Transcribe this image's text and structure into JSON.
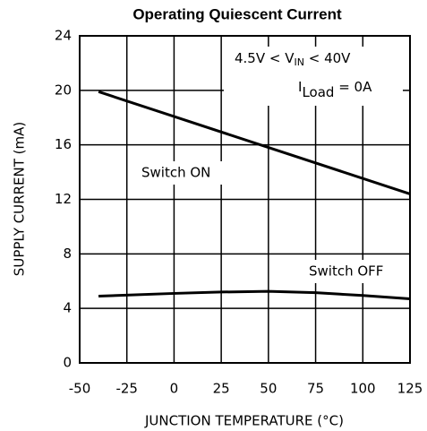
{
  "chart_data": {
    "type": "line",
    "title": "Operating Quiescent Current",
    "xlabel": "JUNCTION TEMPERATURE (°C)",
    "ylabel": "SUPPLY CURRENT (mA)",
    "xlim": [
      -50,
      125
    ],
    "xticks": [
      -50,
      -25,
      0,
      25,
      50,
      75,
      100,
      125
    ],
    "ylim": [
      0,
      24
    ],
    "yticks": [
      0,
      4,
      8,
      12,
      16,
      20,
      24
    ],
    "grid": true,
    "annotations": [
      {
        "text": "4.5V < V",
        "sub": "IN",
        "tail": " < 40V"
      },
      {
        "text": "I",
        "sub": "Load",
        "tail": " = 0A"
      }
    ],
    "series": [
      {
        "name": "Switch ON",
        "color": "#000000",
        "x": [
          -40,
          125
        ],
        "values": [
          19.9,
          12.4
        ]
      },
      {
        "name": "Switch OFF",
        "color": "#000000",
        "x": [
          -40,
          0,
          25,
          50,
          75,
          100,
          125
        ],
        "values": [
          4.9,
          5.1,
          5.2,
          5.25,
          5.15,
          4.95,
          4.7
        ]
      }
    ]
  }
}
